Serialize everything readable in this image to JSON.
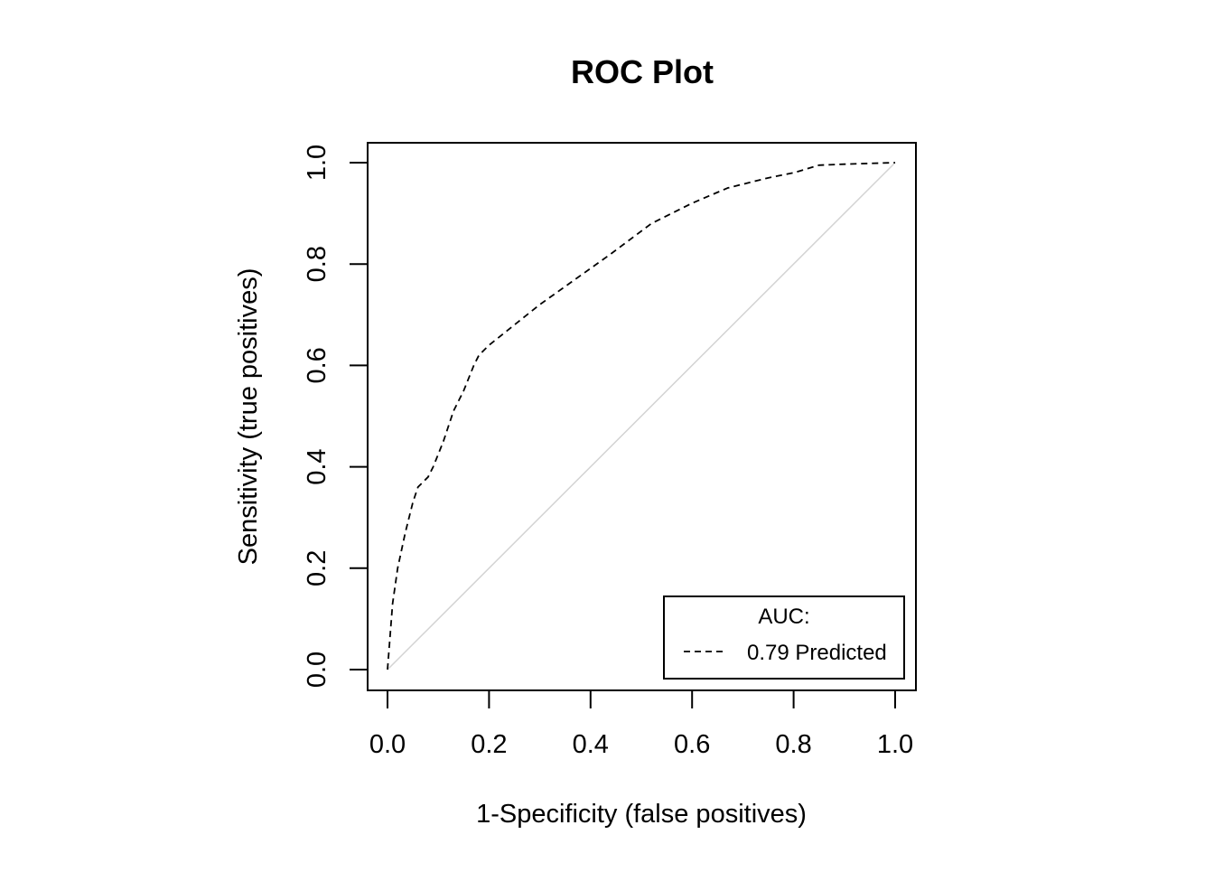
{
  "chart_data": {
    "type": "line",
    "title": "ROC Plot",
    "xlabel": "1-Specificity (false positives)",
    "ylabel": "Sensitivity (true positives)",
    "xlim": [
      0,
      1
    ],
    "ylim": [
      0,
      1
    ],
    "xticks": [
      0.0,
      0.2,
      0.4,
      0.6,
      0.8,
      1.0
    ],
    "yticks": [
      0.0,
      0.2,
      0.4,
      0.6,
      0.8,
      1.0
    ],
    "xtick_labels": [
      "0.0",
      "0.2",
      "0.4",
      "0.6",
      "0.8",
      "1.0"
    ],
    "ytick_labels": [
      "0.0",
      "0.2",
      "0.4",
      "0.6",
      "0.8",
      "1.0"
    ],
    "grid": false,
    "legend": {
      "placement": "bottom-right",
      "title": "AUC:",
      "entries": [
        {
          "label": "0.79 Predicted",
          "line_style": "dashed",
          "color": "#000000"
        }
      ]
    },
    "series": [
      {
        "name": "0.79 Predicted",
        "line_style": "dashed",
        "color": "#000000",
        "x": [
          0.0,
          0.01,
          0.02,
          0.035,
          0.05,
          0.06,
          0.08,
          0.09,
          0.11,
          0.13,
          0.15,
          0.17,
          0.18,
          0.2,
          0.25,
          0.3,
          0.37,
          0.44,
          0.52,
          0.6,
          0.67,
          0.75,
          0.8,
          0.85,
          0.9,
          1.0
        ],
        "y": [
          0.0,
          0.13,
          0.2,
          0.27,
          0.33,
          0.36,
          0.38,
          0.4,
          0.45,
          0.51,
          0.55,
          0.6,
          0.62,
          0.64,
          0.68,
          0.72,
          0.77,
          0.82,
          0.88,
          0.92,
          0.95,
          0.97,
          0.98,
          0.995,
          0.997,
          1.0
        ]
      },
      {
        "name": "",
        "line_style": "solid",
        "color": "#d3d3d3",
        "x": [
          0.0,
          1.0
        ],
        "y": [
          0.0,
          1.0
        ]
      }
    ]
  }
}
